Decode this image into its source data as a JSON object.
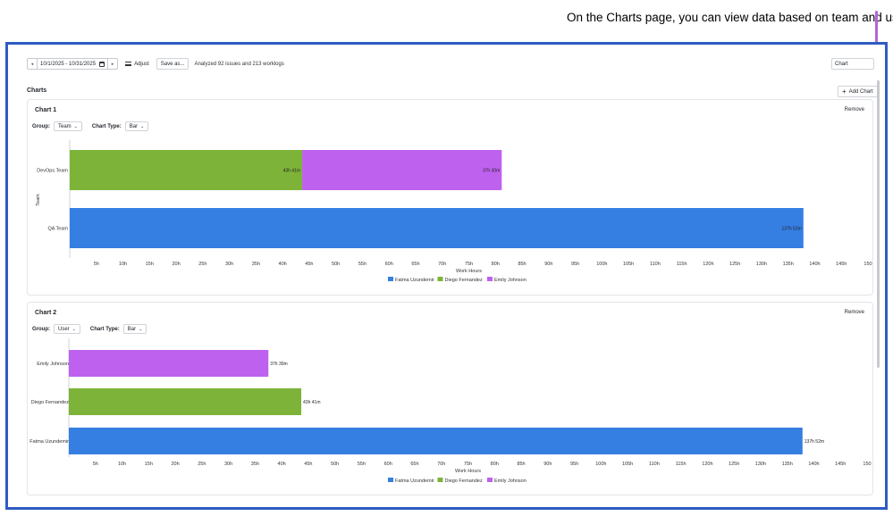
{
  "annotation": {
    "text": "On the Charts page, you can view data based on team and user."
  },
  "toolbar": {
    "date_range": "10/1/2025 - 10/31/2025",
    "adjust_label": "Adjust",
    "save_label": "Save as...",
    "status": "Analyzed 92 issues and 213 worklogs"
  },
  "view_select": {
    "value": "Chart"
  },
  "charts_section": {
    "title": "Charts",
    "add_label": "Add Chart"
  },
  "charts": [
    {
      "title": "Chart 1",
      "remove_label": "Remove",
      "group_label": "Group:",
      "group_value": "Team",
      "type_label": "Chart Type:",
      "type_value": "Bar"
    },
    {
      "title": "Chart 2",
      "remove_label": "Remove",
      "group_label": "Group:",
      "group_value": "User",
      "type_label": "Chart Type:",
      "type_value": "Bar"
    }
  ],
  "colors": {
    "fatma": "#357ee2",
    "diego": "#7db338",
    "emily": "#bf61ef",
    "accent": "#2e5bc2"
  },
  "chart_data": [
    {
      "type": "bar",
      "orientation": "horizontal",
      "stacked": true,
      "title": "Chart 1",
      "ylabel": "Team",
      "xlabel": "Work Hours",
      "categories": [
        "DevOps Team",
        "QA Team"
      ],
      "series": [
        {
          "name": "Fatma Uzundemir",
          "values": [
            0,
            137.87
          ],
          "labels": [
            "",
            "137h 52m"
          ]
        },
        {
          "name": "Diego Fernandez",
          "values": [
            43.68,
            0
          ],
          "labels": [
            "43h 41m",
            ""
          ]
        },
        {
          "name": "Emily Johnson",
          "values": [
            37.5,
            0
          ],
          "labels": [
            "37h 30m",
            ""
          ]
        }
      ],
      "xticks": [
        "5h",
        "10h",
        "15h",
        "20h",
        "25h",
        "30h",
        "35h",
        "40h",
        "45h",
        "50h",
        "55h",
        "60h",
        "65h",
        "70h",
        "75h",
        "80h",
        "85h",
        "90h",
        "95h",
        "100h",
        "105h",
        "110h",
        "115h",
        "120h",
        "125h",
        "130h",
        "135h",
        "140h",
        "145h",
        "150"
      ],
      "xlim": [
        0,
        150
      ],
      "legend": "bottom"
    },
    {
      "type": "bar",
      "orientation": "horizontal",
      "title": "Chart 2",
      "xlabel": "Work Hours",
      "categories": [
        "Emily Johnson",
        "Diego Fernandez",
        "Fatma Uzundemir"
      ],
      "values": [
        37.5,
        43.68,
        137.87
      ],
      "labels": [
        "37h 30m",
        "43h 41m",
        "137h 52m"
      ],
      "series_names": [
        "Emily Johnson",
        "Diego Fernandez",
        "Fatma Uzundemir"
      ],
      "xticks": [
        "5h",
        "10h",
        "15h",
        "20h",
        "25h",
        "30h",
        "35h",
        "40h",
        "45h",
        "50h",
        "55h",
        "60h",
        "65h",
        "70h",
        "75h",
        "80h",
        "85h",
        "90h",
        "95h",
        "100h",
        "105h",
        "110h",
        "115h",
        "120h",
        "125h",
        "130h",
        "135h",
        "140h",
        "145h",
        "150"
      ],
      "xlim": [
        0,
        150
      ],
      "legend": "bottom",
      "legend_entries": [
        "Fatma Uzundemir",
        "Diego Fernandez",
        "Emily Johnson"
      ]
    }
  ]
}
